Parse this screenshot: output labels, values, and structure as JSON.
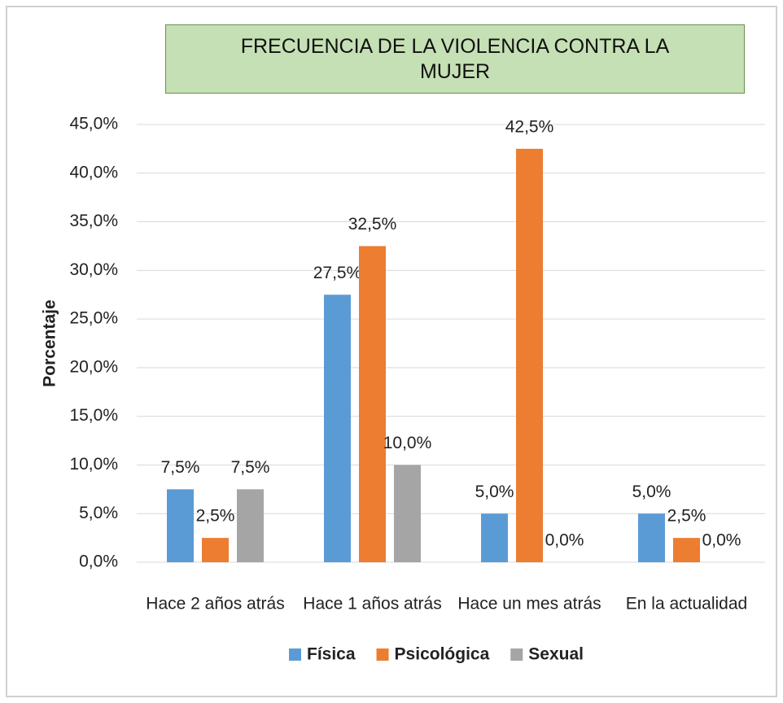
{
  "chart_data": {
    "type": "bar",
    "title": "FRECUENCIA DE LA VIOLENCIA CONTRA LA MUJER",
    "y_label": "Porcentaje",
    "categories": [
      "Hace 2 años atrás",
      "Hace 1 años atrás",
      "Hace un mes atrás",
      "En la actualidad"
    ],
    "series": [
      {
        "name": "Física",
        "color": "#5b9bd5",
        "values": [
          7.5,
          27.5,
          5.0,
          5.0
        ],
        "value_labels": [
          "7,5%",
          "27,5%",
          "5,0%",
          "5,0%"
        ]
      },
      {
        "name": "Psicológica",
        "color": "#ed7d31",
        "values": [
          2.5,
          32.5,
          42.5,
          2.5
        ],
        "value_labels": [
          "2,5%",
          "32,5%",
          "42,5%",
          "2,5%"
        ]
      },
      {
        "name": "Sexual",
        "color": "#a5a5a5",
        "values": [
          7.5,
          10.0,
          0.0,
          0.0
        ],
        "value_labels": [
          "7,5%",
          "10,0%",
          "0,0%",
          "0,0%"
        ]
      }
    ],
    "ylim": [
      0,
      45
    ],
    "yticks": [
      {
        "value": 0,
        "label": "0,0%"
      },
      {
        "value": 5,
        "label": "5,0%"
      },
      {
        "value": 10,
        "label": "10,0%"
      },
      {
        "value": 15,
        "label": "15,0%"
      },
      {
        "value": 20,
        "label": "20,0%"
      },
      {
        "value": 25,
        "label": "25,0%"
      },
      {
        "value": 30,
        "label": "30,0%"
      },
      {
        "value": 35,
        "label": "35,0%"
      },
      {
        "value": 40,
        "label": "40,0%"
      },
      {
        "value": 45,
        "label": "45,0%"
      }
    ],
    "grid": true,
    "legend": "bottom"
  }
}
